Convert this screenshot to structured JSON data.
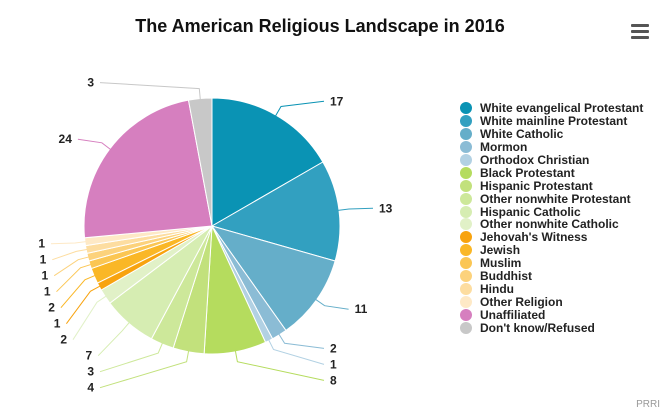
{
  "title": "The American Religious Landscape in 2016",
  "credit": "PRRI",
  "menu_icon": "hamburger-menu-icon",
  "chart_data": {
    "type": "pie",
    "title": "The American Religious Landscape in 2016",
    "legend_position": "right",
    "slices": [
      {
        "label": "White evangelical Protestant",
        "value": 17,
        "color": "#0a93b4"
      },
      {
        "label": "White mainline Protestant",
        "value": 13,
        "color": "#32a0c0"
      },
      {
        "label": "White Catholic",
        "value": 11,
        "color": "#65aec9"
      },
      {
        "label": "Mormon",
        "value": 2,
        "color": "#8bbcd5"
      },
      {
        "label": "Orthodox Christian",
        "value": 1,
        "color": "#b2d1e3"
      },
      {
        "label": "Black Protestant",
        "value": 8,
        "color": "#b5dc5e"
      },
      {
        "label": "Hispanic Protestant",
        "value": 4,
        "color": "#c2e17c"
      },
      {
        "label": "Other nonwhite Protestant",
        "value": 3,
        "color": "#cde89a"
      },
      {
        "label": "Hispanic Catholic",
        "value": 7,
        "color": "#d6edb2"
      },
      {
        "label": "Other nonwhite Catholic",
        "value": 2,
        "color": "#e1f1c7"
      },
      {
        "label": "Jehovah's Witness",
        "value": 1,
        "color": "#f8a30f"
      },
      {
        "label": "Jewish",
        "value": 2,
        "color": "#fab726"
      },
      {
        "label": "Muslim",
        "value": 1,
        "color": "#fbc653"
      },
      {
        "label": "Buddhist",
        "value": 1,
        "color": "#fcd27c"
      },
      {
        "label": "Hindu",
        "value": 1,
        "color": "#fddda0"
      },
      {
        "label": "Other Religion",
        "value": 1,
        "color": "#fee9c6"
      },
      {
        "label": "Unaffiliated",
        "value": 24,
        "color": "#d67fbf"
      },
      {
        "label": "Don't know/Refused",
        "value": 3,
        "color": "#c8c8c8"
      }
    ]
  }
}
